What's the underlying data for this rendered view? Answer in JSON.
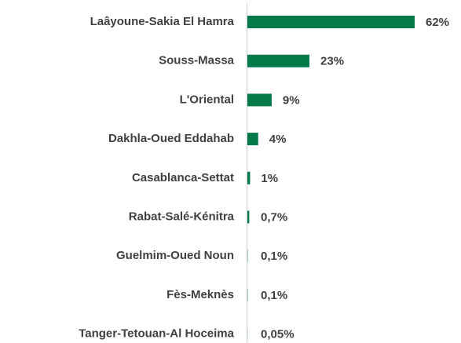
{
  "chart_data": {
    "type": "hbar",
    "categories": [
      "Laâyoune-Sakia El Hamra",
      "Souss-Massa",
      "L'Oriental",
      "Dakhla-Oued Eddahab",
      "Casablanca-Settat",
      "Rabat-Salé-Kénitra",
      "Guelmim-Oued Noun",
      "Fès-Meknès",
      "Tanger-Tetouan-Al Hoceima"
    ],
    "values": [
      62,
      23,
      9,
      4,
      1,
      0.7,
      0.1,
      0.1,
      0.05
    ],
    "value_labels": [
      "62%",
      "23%",
      "9%",
      "4%",
      "1%",
      "0,7%",
      "0,1%",
      "0,1%",
      "0,05%"
    ],
    "color": "#047a4a"
  }
}
